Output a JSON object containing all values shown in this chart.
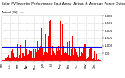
{
  "title": "Solar PV/Inverter Performance East Array  Actual & Average Power Output",
  "subtitle": "Actual [W]  ----",
  "bar_color": "#ff0000",
  "avg_line_color": "#0000ff",
  "background_color": "#ffffff",
  "plot_bg_color": "#ffffff",
  "grid_color": "#aaaaaa",
  "ylim": [
    0,
    3000
  ],
  "ytick_values": [
    500,
    1000,
    1500,
    2000,
    2500,
    3000
  ],
  "ytick_labels": [
    "500",
    "1,000",
    "1,500",
    "2,000",
    "2,500",
    "3,000"
  ],
  "avg_value": 950,
  "num_days": 365,
  "points_per_day": 1,
  "title_fontsize": 3.2,
  "axis_fontsize": 2.8,
  "figsize": [
    1.6,
    1.0
  ],
  "dpi": 100
}
